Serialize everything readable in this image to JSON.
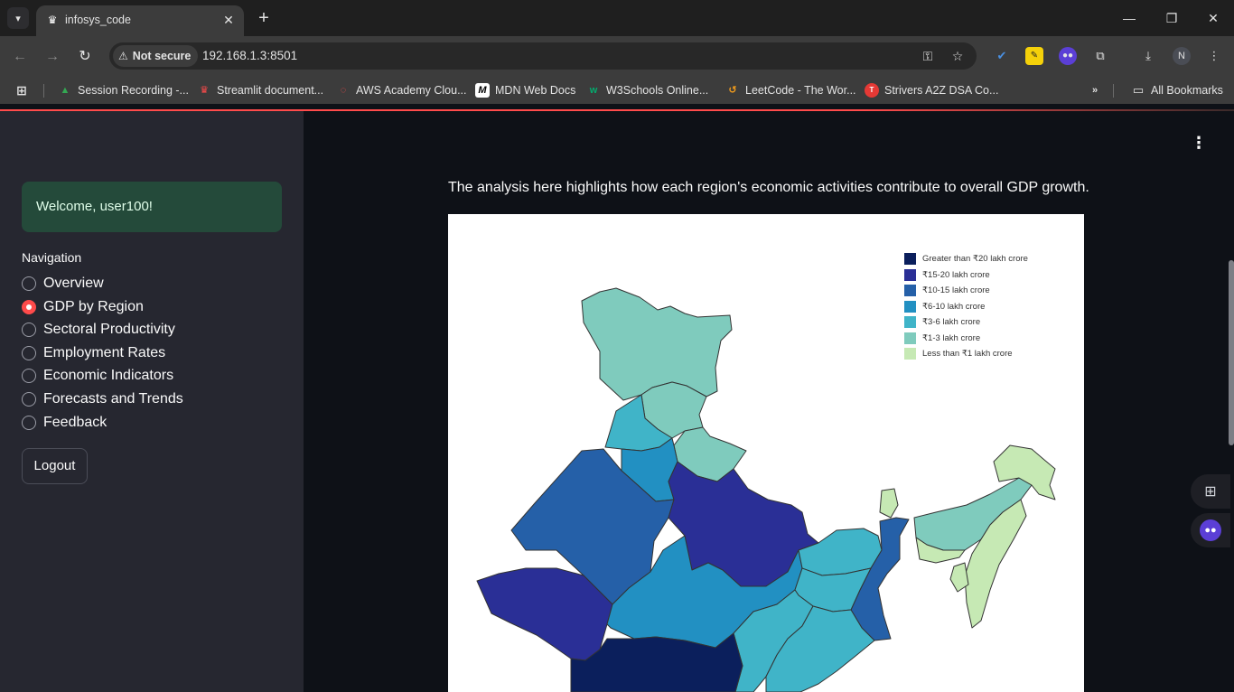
{
  "browser": {
    "tab_title": "infosys_code",
    "tab_close": "✕",
    "new_tab": "+",
    "security_label": "Not secure",
    "url": "192.168.1.3:8501",
    "profile_initial": "N",
    "bookmarks": [
      {
        "label": "Session Recording -...",
        "icon": "drive-icon",
        "color": "#34a853",
        "glyph": "▲"
      },
      {
        "label": "Streamlit document...",
        "icon": "streamlit-icon",
        "color": "#ff4b4b",
        "glyph": "♛"
      },
      {
        "label": "AWS Academy Clou...",
        "icon": "aws-academy-icon",
        "color": "#ff4b4b",
        "glyph": "◌"
      },
      {
        "label": "MDN Web Docs",
        "icon": "mdn-icon",
        "color": "#ffffff",
        "glyph": "M"
      },
      {
        "label": "W3Schools Online...",
        "icon": "w3schools-icon",
        "color": "#04aa6d",
        "glyph": "w"
      },
      {
        "label": "LeetCode - The Wor...",
        "icon": "leetcode-icon",
        "color": "#f89f1b",
        "glyph": "↺"
      },
      {
        "label": "Strivers A2Z DSA Co...",
        "icon": "tuf-icon",
        "color": "#e53935",
        "glyph": "T"
      }
    ],
    "all_bookmarks_label": "All Bookmarks"
  },
  "sidebar": {
    "welcome": "Welcome, user100!",
    "nav_heading": "Navigation",
    "items": [
      {
        "label": "Overview",
        "selected": false
      },
      {
        "label": "GDP by Region",
        "selected": true
      },
      {
        "label": "Sectoral Productivity",
        "selected": false
      },
      {
        "label": "Employment Rates",
        "selected": false
      },
      {
        "label": "Economic Indicators",
        "selected": false
      },
      {
        "label": "Forecasts and Trends",
        "selected": false
      },
      {
        "label": "Feedback",
        "selected": false
      }
    ],
    "logout_label": "Logout"
  },
  "main": {
    "description": "The analysis here highlights how each region's economic activities contribute to overall GDP growth.",
    "map_legend": [
      {
        "label": "Greater than ₹20 lakh crore",
        "color": "#0b1f5c"
      },
      {
        "label": "₹15-20 lakh crore",
        "color": "#2a2f96"
      },
      {
        "label": "₹10-15 lakh crore",
        "color": "#2560a8"
      },
      {
        "label": "₹6-10 lakh crore",
        "color": "#2290c2"
      },
      {
        "label": "₹3-6 lakh crore",
        "color": "#40b4c8"
      },
      {
        "label": "₹1-3 lakh crore",
        "color": "#7fcbbd"
      },
      {
        "label": "Less than ₹1 lakh crore",
        "color": "#c6e9b4"
      }
    ]
  },
  "colors": {
    "accent": "#ff4b4b",
    "sidebar_bg": "#262730",
    "main_bg": "#0e1117",
    "welcome_bg": "#244a3a"
  }
}
